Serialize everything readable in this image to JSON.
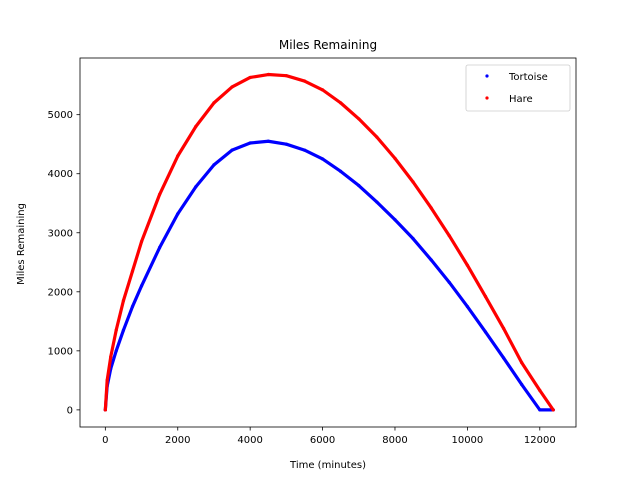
{
  "chart_data": {
    "type": "scatter",
    "title": "Miles Remaining",
    "xlabel": "Time (minutes)",
    "ylabel": "Miles Remaining",
    "xlim": [
      -700,
      13000
    ],
    "ylim": [
      -290,
      5960
    ],
    "xticks": [
      0,
      2000,
      4000,
      6000,
      8000,
      10000,
      12000
    ],
    "yticks": [
      0,
      1000,
      2000,
      3000,
      4000,
      5000
    ],
    "grid": false,
    "legend_position": "top-right",
    "series": [
      {
        "name": "Tortoise",
        "color": "#0000ff",
        "x": [
          0,
          50,
          150,
          300,
          500,
          750,
          1000,
          1500,
          2000,
          2500,
          3000,
          3500,
          4000,
          4500,
          5000,
          5500,
          6000,
          6500,
          7000,
          7500,
          8000,
          8500,
          9000,
          9500,
          10000,
          10500,
          11000,
          11500,
          12000,
          12370
        ],
        "y": [
          0,
          400,
          700,
          1000,
          1350,
          1750,
          2100,
          2750,
          3320,
          3780,
          4150,
          4400,
          4520,
          4550,
          4500,
          4400,
          4250,
          4040,
          3800,
          3520,
          3220,
          2900,
          2540,
          2160,
          1750,
          1320,
          880,
          430,
          0,
          0
        ]
      },
      {
        "name": "Hare",
        "color": "#ff0000",
        "x": [
          0,
          50,
          150,
          300,
          500,
          750,
          1000,
          1500,
          2000,
          2500,
          3000,
          3500,
          4000,
          4500,
          5000,
          5500,
          6000,
          6500,
          7000,
          7500,
          8000,
          8500,
          9000,
          9500,
          10000,
          10500,
          11000,
          11500,
          12000,
          12370
        ],
        "y": [
          0,
          500,
          900,
          1350,
          1850,
          2350,
          2850,
          3650,
          4300,
          4800,
          5200,
          5470,
          5630,
          5680,
          5660,
          5570,
          5420,
          5200,
          4930,
          4620,
          4260,
          3860,
          3420,
          2950,
          2450,
          1920,
          1380,
          800,
          330,
          0
        ]
      }
    ]
  }
}
